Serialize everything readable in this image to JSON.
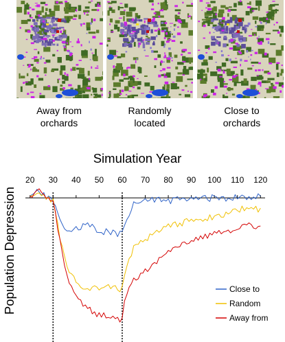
{
  "maps": [
    {
      "caption_line1": "Away from",
      "caption_line2": "orchards"
    },
    {
      "caption_line1": "Randomly",
      "caption_line2": "located"
    },
    {
      "caption_line1": "Close to",
      "caption_line2": "orchards"
    }
  ],
  "map_colors": {
    "land": "#d8d4bc",
    "vegetation": "#5c7c2c",
    "urban": "#7c6cb4",
    "orchards": "#cc22e6",
    "water": "#1e4fd8",
    "highlight_red": "#c01010",
    "highlight_yellow": "#f0e020"
  },
  "chart_data": {
    "type": "line",
    "title": "Simulation Year",
    "ylabel": "Population Depression",
    "xlabel": "",
    "xlim": [
      18,
      122
    ],
    "x_ticks": [
      20,
      30,
      40,
      50,
      60,
      70,
      80,
      90,
      100,
      110,
      120
    ],
    "ylim": [
      -0.1,
      1.0
    ],
    "y_axis_inverted": true,
    "grid": false,
    "legend_position": "bottom-right",
    "reference_lines_x": [
      30,
      60
    ],
    "series": [
      {
        "name": "Close to",
        "color": "#2f63c8",
        "key_years": [
          20,
          24,
          27,
          30,
          33,
          36,
          40,
          45,
          50,
          55,
          58,
          60,
          61,
          63,
          65,
          70,
          80,
          90,
          100,
          110,
          115,
          120
        ],
        "key_values": [
          0.0,
          -0.06,
          0.0,
          0.02,
          0.18,
          0.27,
          0.25,
          0.22,
          0.26,
          0.28,
          0.29,
          0.28,
          0.2,
          0.12,
          0.05,
          0.02,
          0.02,
          0.01,
          0.0,
          0.0,
          -0.01,
          -0.02
        ],
        "noise": 0.028,
        "seed": 11
      },
      {
        "name": "Random",
        "color": "#f0c000",
        "key_years": [
          20,
          24,
          27,
          30,
          33,
          36,
          40,
          45,
          50,
          55,
          58,
          60,
          61,
          63,
          65,
          70,
          80,
          90,
          100,
          110,
          115,
          120
        ],
        "key_values": [
          0.0,
          -0.05,
          0.0,
          0.02,
          0.32,
          0.56,
          0.68,
          0.73,
          0.72,
          0.71,
          0.73,
          0.73,
          0.62,
          0.48,
          0.4,
          0.33,
          0.23,
          0.18,
          0.15,
          0.1,
          0.07,
          0.1
        ],
        "noise": 0.025,
        "seed": 23
      },
      {
        "name": "Away from",
        "color": "#d40000",
        "key_years": [
          20,
          24,
          27,
          30,
          33,
          36,
          40,
          45,
          50,
          55,
          58,
          60,
          61,
          63,
          65,
          70,
          80,
          90,
          100,
          110,
          115,
          120
        ],
        "key_values": [
          0.0,
          -0.05,
          0.0,
          0.02,
          0.35,
          0.62,
          0.8,
          0.88,
          0.94,
          0.95,
          0.97,
          0.97,
          0.85,
          0.72,
          0.66,
          0.58,
          0.44,
          0.33,
          0.29,
          0.25,
          0.22,
          0.23
        ],
        "noise": 0.025,
        "seed": 37
      }
    ]
  }
}
